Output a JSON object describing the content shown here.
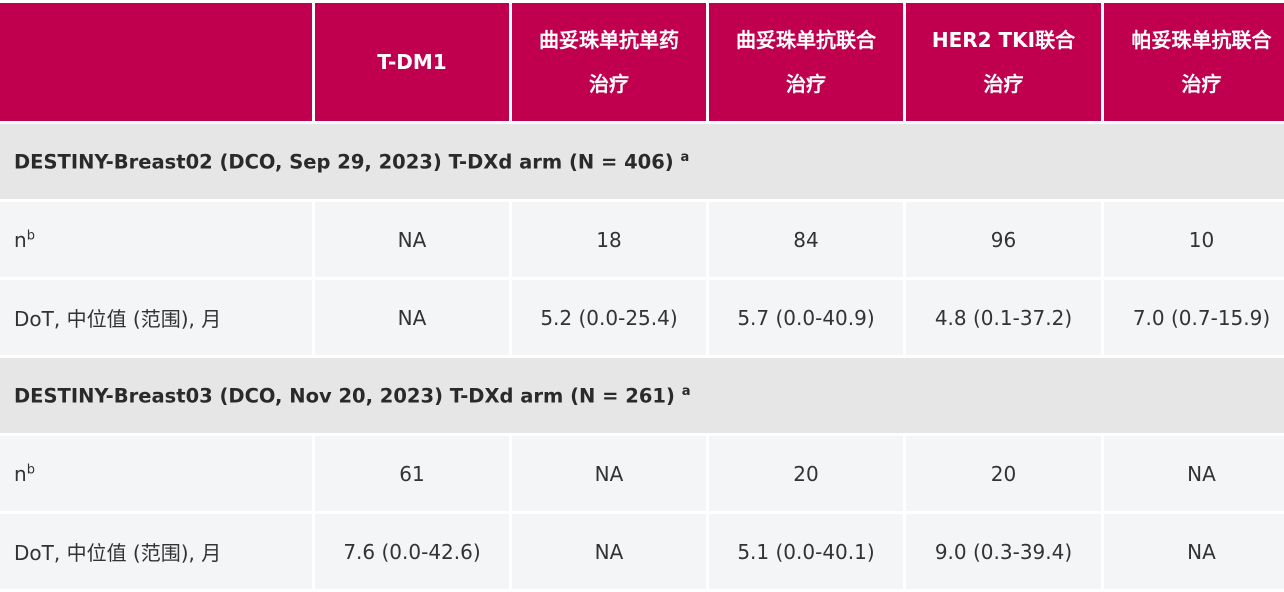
{
  "header": {
    "columns": [
      "",
      "T-DM1",
      "曲妥珠单抗单药治疗",
      "曲妥珠单抗联合治疗",
      "HER2 TKI联合治疗",
      "帕妥珠单抗联合治疗"
    ],
    "column_lines": [
      [
        "",
        ""
      ],
      [
        "T-DM1",
        ""
      ],
      [
        "曲妥珠单抗单药",
        "治疗"
      ],
      [
        "曲妥珠单抗联合",
        "治疗"
      ],
      [
        "HER2 TKI联合",
        "治疗"
      ],
      [
        "帕妥珠单抗联合",
        "治疗"
      ]
    ]
  },
  "colors": {
    "header_bg": "#c0004f",
    "section_bg": "#e6e6e6",
    "row_bg": "#f4f5f6"
  },
  "sections": [
    {
      "title": "DESTINY-Breast02 (DCO, Sep 29, 2023) T-DXd arm (N = 406)",
      "title_sup": "a",
      "rows": [
        {
          "label": "n",
          "label_sup": "b",
          "values": [
            "NA",
            "18",
            "84",
            "96",
            "10"
          ]
        },
        {
          "label": "DoT, 中位值 (范围), 月",
          "label_sup": "",
          "values": [
            "NA",
            "5.2 (0.0-25.4)",
            "5.7 (0.0-40.9)",
            "4.8 (0.1-37.2)",
            "7.0 (0.7-15.9)"
          ]
        }
      ]
    },
    {
      "title": "DESTINY-Breast03 (DCO, Nov 20, 2023) T-DXd arm (N = 261)",
      "title_sup": "a",
      "rows": [
        {
          "label": "n",
          "label_sup": "b",
          "values": [
            "61",
            "NA",
            "20",
            "20",
            "NA"
          ]
        },
        {
          "label": "DoT, 中位值 (范围), 月",
          "label_sup": "",
          "values": [
            "7.6 (0.0-42.6)",
            "NA",
            "5.1 (0.0-40.1)",
            "9.0 (0.3-39.4)",
            "NA"
          ]
        }
      ]
    }
  ]
}
